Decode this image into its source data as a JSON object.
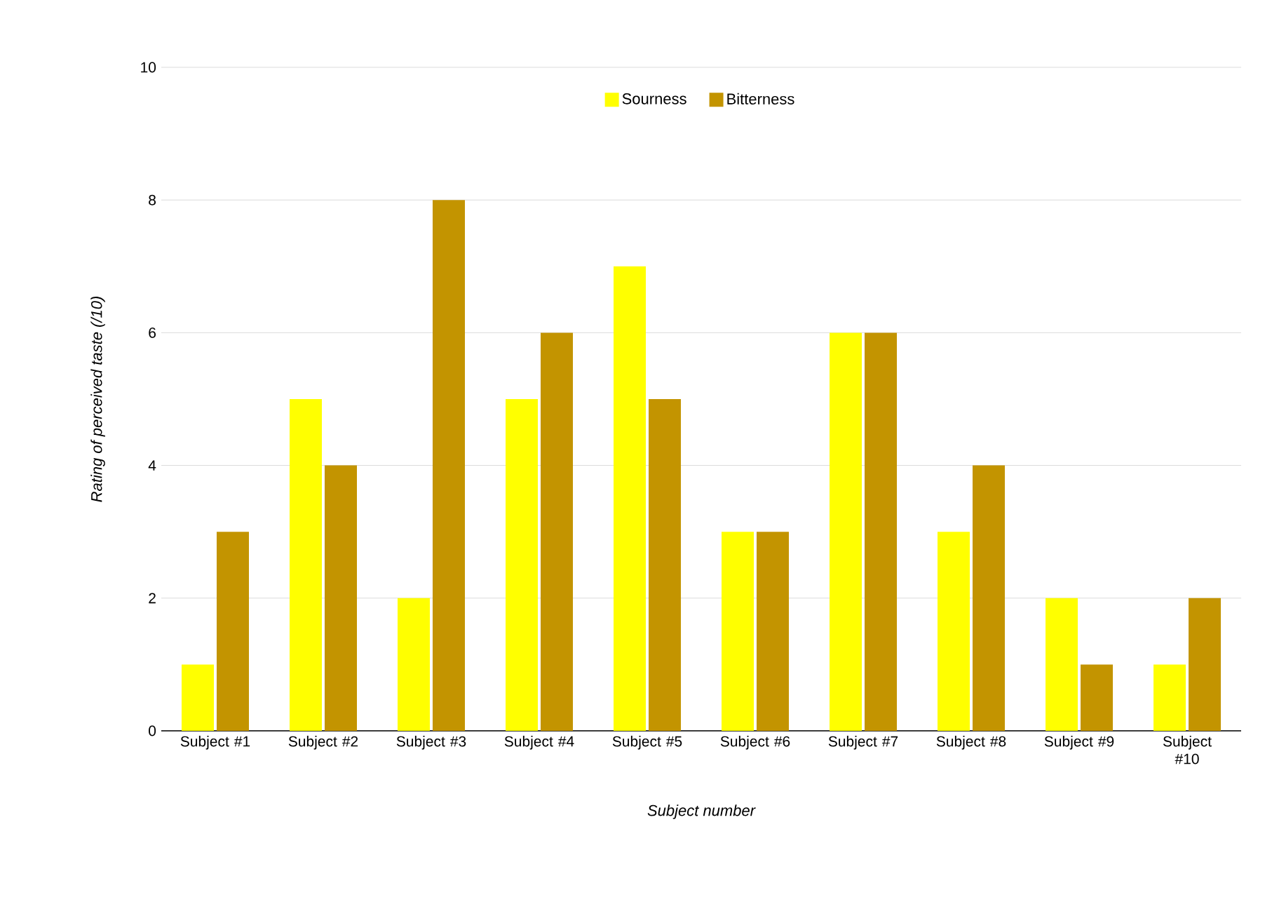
{
  "chart_data": {
    "type": "bar",
    "xlabel": "Subject number",
    "ylabel": "Rating of perceived taste (/10)",
    "categories": [
      "Subject #1",
      "Subject #2",
      "Subject #3",
      "Subject #4",
      "Subject #5",
      "Subject #6",
      "Subject #7",
      "Subject #8",
      "Subject #9",
      "Subject #10"
    ],
    "series": [
      {
        "name": "Sourness",
        "color": "#ffff00",
        "values": [
          1,
          5,
          2,
          5,
          7,
          3,
          6,
          3,
          2,
          1
        ]
      },
      {
        "name": "Bitterness",
        "color": "#c39400",
        "values": [
          3,
          4,
          8,
          6,
          5,
          3,
          6,
          4,
          1,
          2
        ]
      }
    ],
    "ylim": [
      0,
      10
    ],
    "yticks": [
      0,
      2,
      4,
      6,
      8,
      10
    ],
    "grid": "y",
    "legend": "top"
  }
}
